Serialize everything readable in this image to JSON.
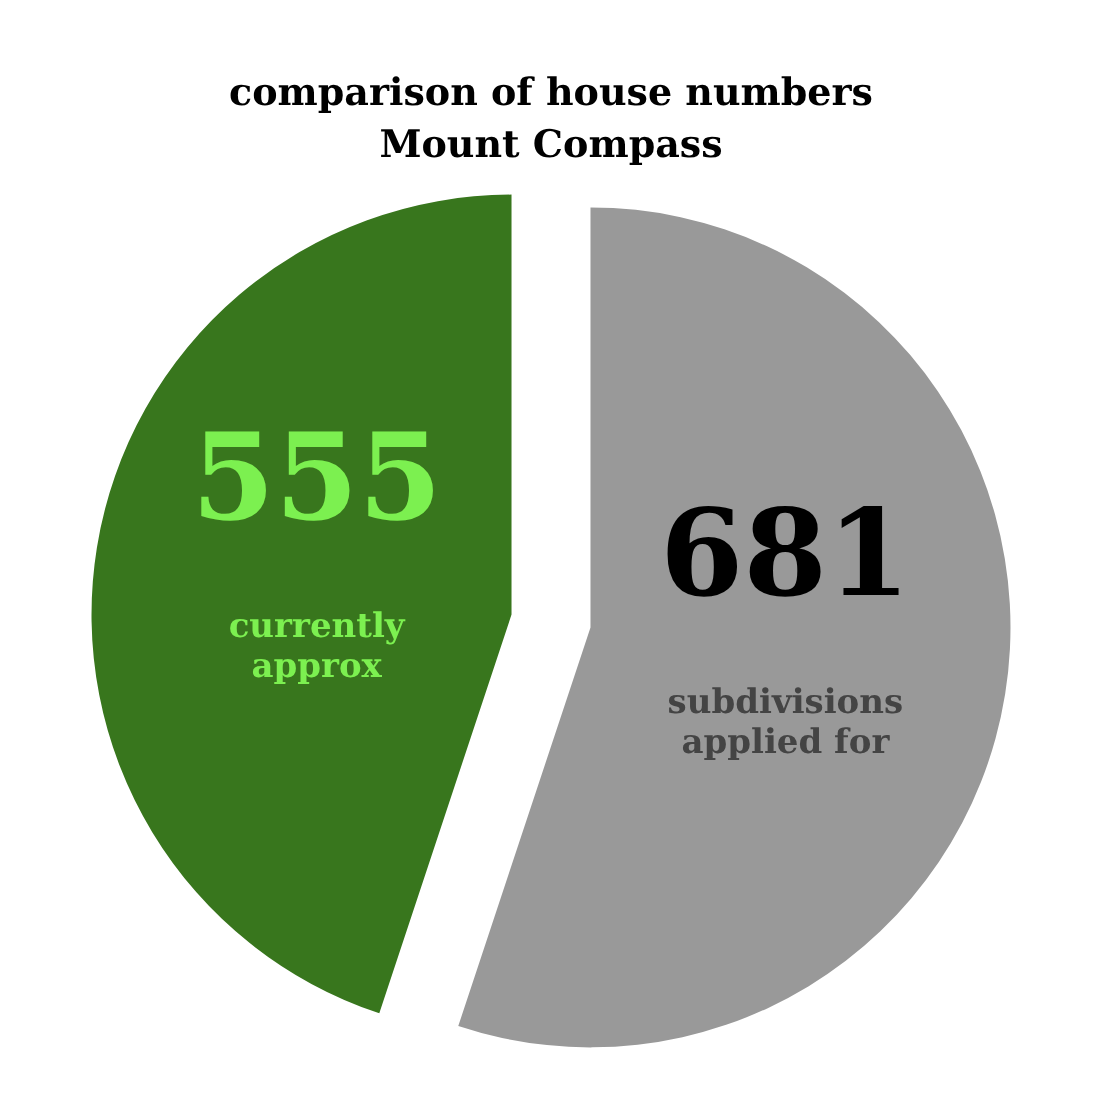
{
  "chart_data": {
    "type": "pie",
    "title": "comparison of house numbers\nMount Compass",
    "categories": [
      "currently approx",
      "subdivisions applied for"
    ],
    "values": [
      555,
      681
    ],
    "colors": [
      "#38761d",
      "#999999"
    ],
    "data_labels": true
  }
}
